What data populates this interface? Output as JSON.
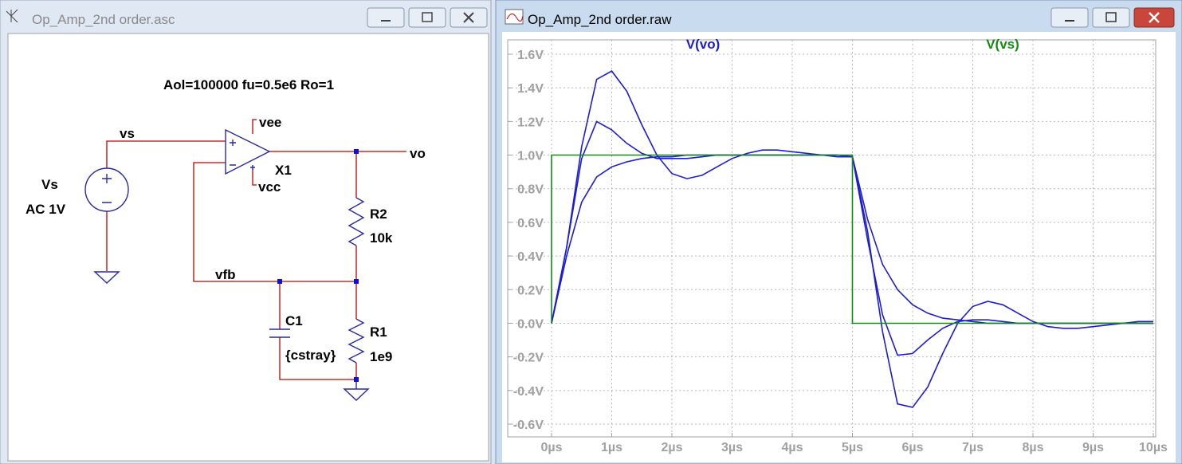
{
  "schematic_window": {
    "title": "Op_Amp_2nd order.asc",
    "labels": {
      "directive": "Aol=100000 fu=0.5e6 Ro=1",
      "vs_net": "vs",
      "vee": "vee",
      "vo": "vo",
      "x1": "X1",
      "vcc": "vcc",
      "source_name": "Vs",
      "source_value": "AC 1V",
      "r2_name": "R2",
      "r2_value": "10k",
      "vfb": "vfb",
      "c1_name": "C1",
      "c1_value": "{cstray}",
      "r1_name": "R1",
      "r1_value": "1e9"
    }
  },
  "plot_window": {
    "title": "Op_Amp_2nd order.raw"
  },
  "chart_data": {
    "type": "line",
    "x": [
      0,
      0.25,
      0.5,
      0.75,
      1,
      1.25,
      1.5,
      1.75,
      2,
      2.25,
      2.5,
      2.75,
      3,
      3.25,
      3.5,
      3.75,
      4,
      4.25,
      4.5,
      4.75,
      5,
      5.25,
      5.5,
      5.75,
      6,
      6.25,
      6.5,
      6.75,
      7,
      7.25,
      7.5,
      7.75,
      8,
      8.25,
      8.5,
      8.75,
      9,
      9.25,
      9.5,
      9.75,
      10
    ],
    "series": [
      {
        "name": "V(vo)",
        "color": "#1c1cd0",
        "values": [
          0,
          0.45,
          1.05,
          1.45,
          1.5,
          1.38,
          1.18,
          1.0,
          0.89,
          0.86,
          0.88,
          0.93,
          0.98,
          1.01,
          1.03,
          1.03,
          1.02,
          1.01,
          1.0,
          0.99,
          0.99,
          0.55,
          -0.05,
          -0.48,
          -0.5,
          -0.38,
          -0.18,
          0.0,
          0.1,
          0.13,
          0.11,
          0.06,
          0.01,
          -0.02,
          -0.03,
          -0.03,
          -0.02,
          -0.01,
          0.0,
          0.01,
          0.01
        ]
      },
      {
        "color": "#1c1cd0",
        "values": [
          0,
          0.45,
          0.98,
          1.2,
          1.15,
          1.07,
          1.01,
          0.98,
          0.98,
          0.98,
          0.99,
          1.0,
          1.0,
          1.0,
          1.0,
          1.0,
          1.0,
          1.0,
          1.0,
          1.0,
          0.99,
          0.5,
          0.05,
          -0.19,
          -0.18,
          -0.1,
          -0.03,
          0.01,
          0.02,
          0.02,
          0.01,
          0,
          0,
          0,
          0,
          0,
          0,
          0,
          0,
          0,
          0
        ]
      },
      {
        "color": "#1c1cd0",
        "values": [
          0,
          0.4,
          0.72,
          0.87,
          0.93,
          0.96,
          0.98,
          0.99,
          0.99,
          1.0,
          1.0,
          1.0,
          1.0,
          1.0,
          1.0,
          1.0,
          1.0,
          1.0,
          1.0,
          1.0,
          0.99,
          0.62,
          0.35,
          0.2,
          0.11,
          0.06,
          0.03,
          0.02,
          0.01,
          0,
          0,
          0,
          0,
          0,
          0,
          0,
          0,
          0,
          0,
          0,
          0
        ]
      },
      {
        "name": "V(vs)",
        "color": "#138a13",
        "x": [
          0,
          0,
          5,
          5,
          10
        ],
        "values": [
          0,
          1,
          1,
          0,
          0
        ]
      }
    ],
    "xlim": [
      0,
      10
    ],
    "xticks": [
      {
        "value": 0,
        "label": "0µs"
      },
      {
        "value": 1,
        "label": "1µs"
      },
      {
        "value": 2,
        "label": "2µs"
      },
      {
        "value": 3,
        "label": "3µs"
      },
      {
        "value": 4,
        "label": "4µs"
      },
      {
        "value": 5,
        "label": "5µs"
      },
      {
        "value": 6,
        "label": "6µs"
      },
      {
        "value": 7,
        "label": "7µs"
      },
      {
        "value": 8,
        "label": "8µs"
      },
      {
        "value": 9,
        "label": "9µs"
      },
      {
        "value": 10,
        "label": "10µs"
      }
    ],
    "ylim": [
      -0.6,
      1.6
    ],
    "yticks": [
      {
        "value": 1.6,
        "label": "1.6V"
      },
      {
        "value": 1.4,
        "label": "1.4V"
      },
      {
        "value": 1.2,
        "label": "1.2V"
      },
      {
        "value": 1.0,
        "label": "1.0V"
      },
      {
        "value": 0.8,
        "label": "0.8V"
      },
      {
        "value": 0.6,
        "label": "0.6V"
      },
      {
        "value": 0.4,
        "label": "0.4V"
      },
      {
        "value": 0.2,
        "label": "0.2V"
      },
      {
        "value": 0.0,
        "label": "0.0V"
      },
      {
        "value": -0.2,
        "label": "-0.2V"
      },
      {
        "value": -0.4,
        "label": "-0.4V"
      },
      {
        "value": -0.6,
        "label": "-0.6V"
      }
    ],
    "grid": true
  }
}
